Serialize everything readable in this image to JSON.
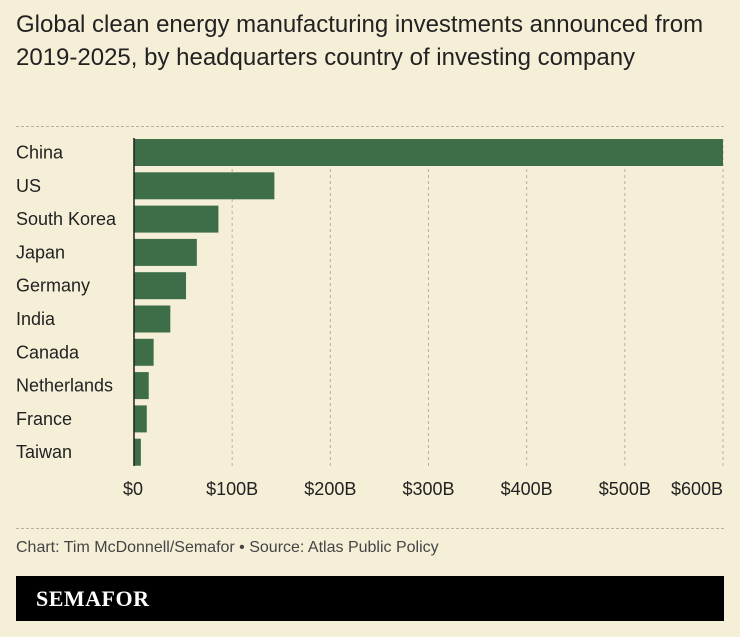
{
  "title": "Global clean energy manufacturing investments announced from 2019-2025, by headquarters country of investing company",
  "credit": "Chart: Tim McDonnell/Semafor • Source: Atlas Public Policy",
  "logo": "SEMAFOR",
  "colors": {
    "bar": "#3d6e47",
    "background": "#f5efd8",
    "grid": "#b9b39c"
  },
  "chart_data": {
    "type": "bar",
    "orientation": "horizontal",
    "categories": [
      "China",
      "US",
      "South Korea",
      "Japan",
      "Germany",
      "India",
      "Canada",
      "Netherlands",
      "France",
      "Taiwan"
    ],
    "values": [
      600,
      143,
      86,
      64,
      53,
      37,
      20,
      15,
      13,
      7
    ],
    "unit": "$B",
    "xlim": [
      0,
      600
    ],
    "ticks": [
      0,
      100,
      200,
      300,
      400,
      500,
      600
    ],
    "tick_labels": [
      "$0",
      "$100B",
      "$200B",
      "$300B",
      "$400B",
      "$500B",
      "$600B"
    ],
    "grid": true
  }
}
